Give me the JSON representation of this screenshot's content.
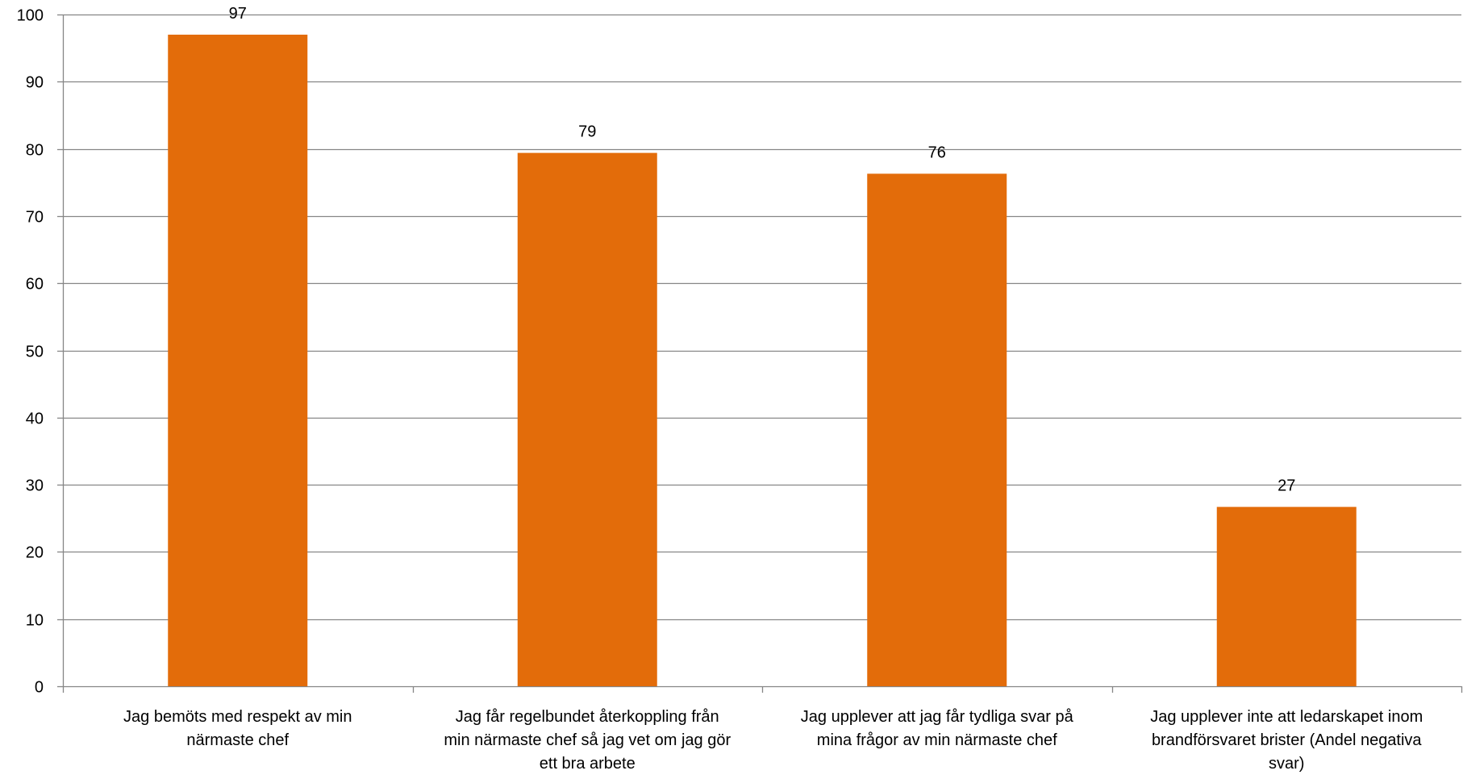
{
  "chart_data": {
    "type": "bar",
    "categories": [
      [
        "Jag bemöts med respekt av min",
        "närmaste chef"
      ],
      [
        "Jag får regelbundet återkoppling från",
        "min närmaste chef så jag vet om jag gör",
        "ett bra arbete"
      ],
      [
        "Jag upplever att jag får tydliga svar på",
        "mina frågor av min närmaste chef"
      ],
      [
        "Jag upplever inte att ledarskapet inom",
        "brandförsvaret brister (Andel negativa",
        "svar)"
      ]
    ],
    "values": [
      97,
      79.4,
      76.3,
      26.7
    ],
    "data_labels": [
      "97",
      "79",
      "76",
      "27"
    ],
    "y_ticks": [
      "0",
      "10",
      "20",
      "30",
      "40",
      "50",
      "60",
      "70",
      "80",
      "90",
      "100"
    ],
    "ylim": [
      0,
      100
    ],
    "grid": true,
    "legend": "none",
    "colors": {
      "bar": "#E36C0A",
      "grid": "#868686",
      "axis": "#868686"
    }
  }
}
